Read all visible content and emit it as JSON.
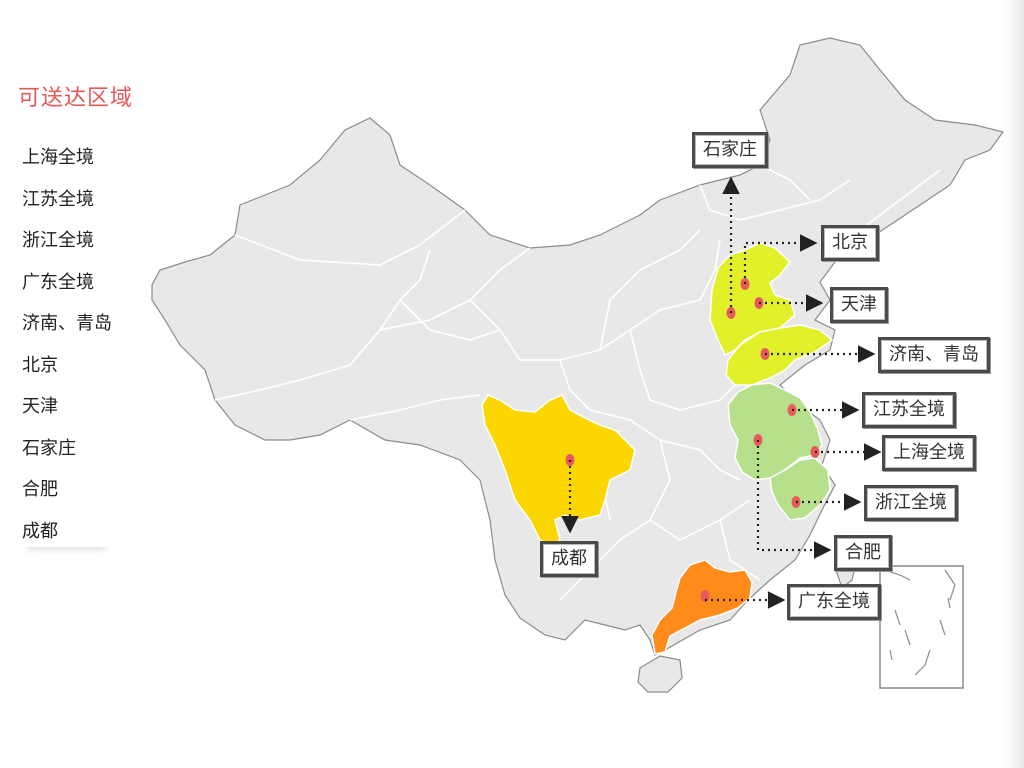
{
  "sidebar": {
    "title": "可送达区域",
    "items": [
      {
        "label": "上海全境"
      },
      {
        "label": "江苏全境"
      },
      {
        "label": "浙江全境"
      },
      {
        "label": "广东全境"
      },
      {
        "label": "济南、青岛"
      },
      {
        "label": "北京"
      },
      {
        "label": "天津"
      },
      {
        "label": "石家庄"
      },
      {
        "label": "合肥"
      },
      {
        "label": "成都"
      }
    ]
  },
  "map": {
    "callouts": {
      "shijiazhuang": "石家庄",
      "beijing": "北京",
      "tianjin": "天津",
      "jinan_qingdao": "济南、青岛",
      "jiangsu": "江苏全境",
      "shanghai": "上海全境",
      "zhejiang": "浙江全境",
      "hefei": "合肥",
      "guangdong": "广东全境",
      "chengdu": "成都"
    },
    "colors": {
      "base": "#e8e8e8",
      "border": "#ffffff",
      "north_region": "#e2f02a",
      "east_region": "#b6e08c",
      "sichuan": "#fcd600",
      "guangdong": "#ff8c1a",
      "marker": "#e8595c",
      "title": "#e35a5a"
    }
  }
}
